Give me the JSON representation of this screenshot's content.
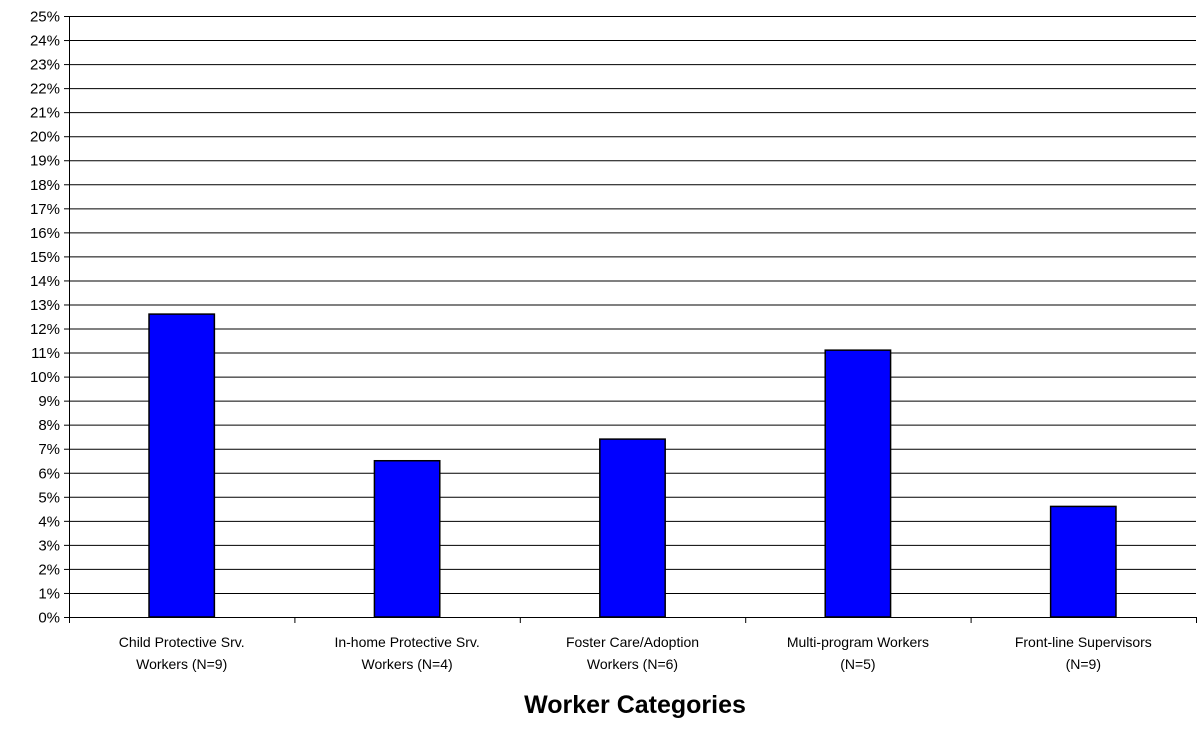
{
  "chart_data": {
    "type": "bar",
    "title": "",
    "xlabel": "Worker Categories",
    "ylabel": "",
    "ylim": [
      0,
      25
    ],
    "y_tick_step": 1,
    "y_tick_format": "percent",
    "grid": true,
    "legend": "none",
    "categories": [
      [
        "Child Protective Srv.",
        "Workers (N=9)"
      ],
      [
        "In-home Protective Srv.",
        "Workers (N=4)"
      ],
      [
        "Foster Care/Adoption",
        "Workers (N=6)"
      ],
      [
        "Multi-program Workers",
        "(N=5)"
      ],
      [
        "Front-line Supervisors",
        "(N=9)"
      ]
    ],
    "values": [
      12.6,
      6.5,
      7.4,
      11.1,
      4.6
    ],
    "colors": {
      "bar": "#0000ff",
      "bar_stroke": "#000000",
      "grid": "#000000"
    }
  }
}
